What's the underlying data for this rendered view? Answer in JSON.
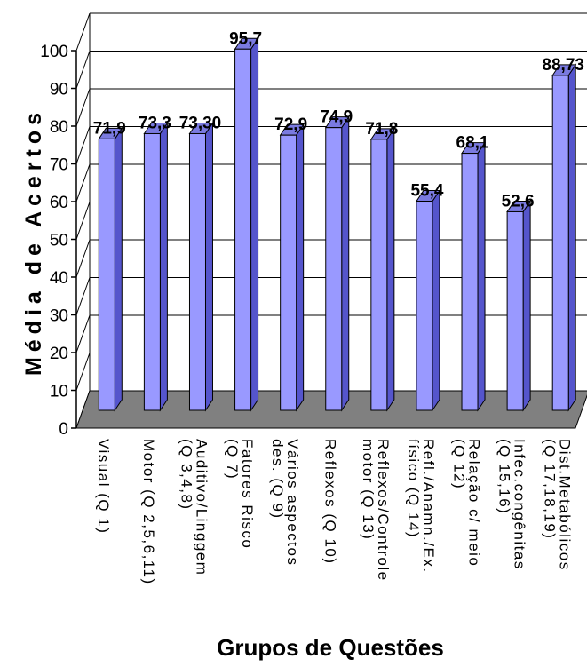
{
  "chart_data": {
    "type": "bar",
    "title": "",
    "xlabel": "Grupos de Questões",
    "ylabel": "Média de Acertos",
    "ylim": [
      0,
      100
    ],
    "yticks": [
      "0",
      "10",
      "20",
      "30",
      "40",
      "50",
      "60",
      "70",
      "80",
      "90",
      "100"
    ],
    "grid": true,
    "categories": [
      [
        "Visual (Q 1)"
      ],
      [
        "Motor (Q 2,5,6,11)"
      ],
      [
        "Auditivo/Linggem",
        "(Q 3,4,8)"
      ],
      [
        "Fatores Risco",
        "(Q 7)"
      ],
      [
        "Vários aspectos",
        "des. (Q 9)"
      ],
      [
        "Reflexos (Q 10)"
      ],
      [
        "Reflexos/Controle",
        "motor (Q 13)"
      ],
      [
        "Refl./Anamn./Ex.",
        "físico (Q 14)"
      ],
      [
        "Relação c/ meio",
        "(Q 12)"
      ],
      [
        "Infec.congênitas",
        "(Q 15,16)"
      ],
      [
        "Dist.Metabólicos",
        "(Q 17,18,19)"
      ]
    ],
    "values": [
      71.9,
      73.3,
      73.3,
      95.7,
      72.9,
      74.9,
      71.8,
      55.4,
      68.1,
      52.6,
      88.73
    ],
    "value_labels": [
      "71,9",
      "73,3",
      "73,30",
      "95,7",
      "72,9",
      "74,9",
      "71,8",
      "55,4",
      "68,1",
      "52,6",
      "88,73"
    ],
    "colors": {
      "bar_front": "#9999ff",
      "bar_side": "#5555cc",
      "bar_top": "#7a7ae0",
      "floor": "#808080"
    }
  }
}
